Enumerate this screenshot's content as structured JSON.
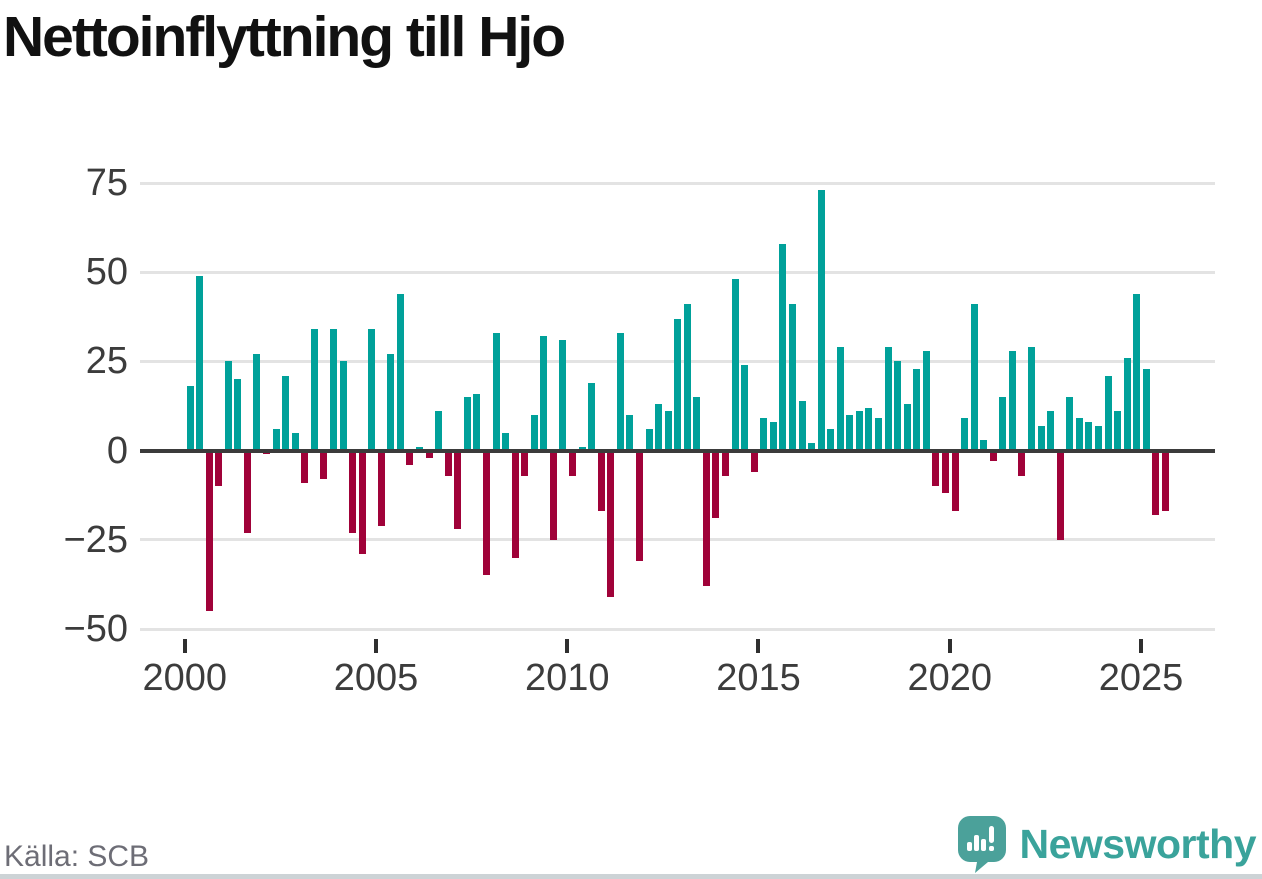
{
  "title": "Nettoinflyttning till Hjo",
  "source": "Källa: SCB",
  "logo": {
    "text": "Newsworthy"
  },
  "colors": {
    "positive": "#00a19a",
    "negative": "#a00239",
    "grid": "#e3e3e3",
    "zero_axis": "#3b3b3b",
    "tick_text": "#3c3c3c",
    "title_text": "#111111",
    "source_text": "#6d6d76",
    "logo_teal": "#3aa39b"
  },
  "chart_data": {
    "type": "bar",
    "title": "Nettoinflyttning till Hjo",
    "frequency": "quarterly",
    "start": "2000Q1",
    "end": "2025Q3",
    "xlabel": "",
    "ylabel": "",
    "ylim": [
      -50,
      75
    ],
    "y_ticks": [
      75,
      50,
      25,
      0,
      -25,
      -50
    ],
    "x_tick_labels": [
      "2000",
      "2005",
      "2010",
      "2015",
      "2020",
      "2025"
    ],
    "grid": "horizontal",
    "legend": "none",
    "values_by_year": {
      "2000": [
        18,
        49,
        -45,
        -10
      ],
      "2001": [
        25,
        20,
        -23,
        27
      ],
      "2002": [
        -1,
        6,
        21,
        5
      ],
      "2003": [
        -9,
        34,
        -8,
        34
      ],
      "2004": [
        25,
        -23,
        -29,
        34
      ],
      "2005": [
        -21,
        27,
        44,
        -4
      ],
      "2006": [
        1,
        -2,
        11,
        -7
      ],
      "2007": [
        -22,
        15,
        16,
        -35
      ],
      "2008": [
        33,
        5,
        -30,
        -7
      ],
      "2009": [
        10,
        32,
        -25,
        31
      ],
      "2010": [
        -7,
        1,
        19,
        -17
      ],
      "2011": [
        -41,
        33,
        10,
        -31
      ],
      "2012": [
        6,
        13,
        11,
        37
      ],
      "2013": [
        41,
        15,
        -38,
        -19
      ],
      "2014": [
        -7,
        48,
        24,
        -6
      ],
      "2015": [
        9,
        8,
        58,
        41
      ],
      "2016": [
        14,
        2,
        73,
        6
      ],
      "2017": [
        29,
        10,
        11,
        12
      ],
      "2018": [
        9,
        29,
        25,
        13
      ],
      "2019": [
        23,
        28,
        -10,
        -12
      ],
      "2020": [
        -17,
        9,
        41,
        3
      ],
      "2021": [
        -3,
        15,
        28,
        -7
      ],
      "2022": [
        29,
        7,
        11,
        -25
      ],
      "2023": [
        15,
        9,
        8,
        7
      ],
      "2024": [
        21,
        11,
        26,
        44
      ],
      "2025": [
        23,
        -18,
        -17
      ]
    }
  }
}
